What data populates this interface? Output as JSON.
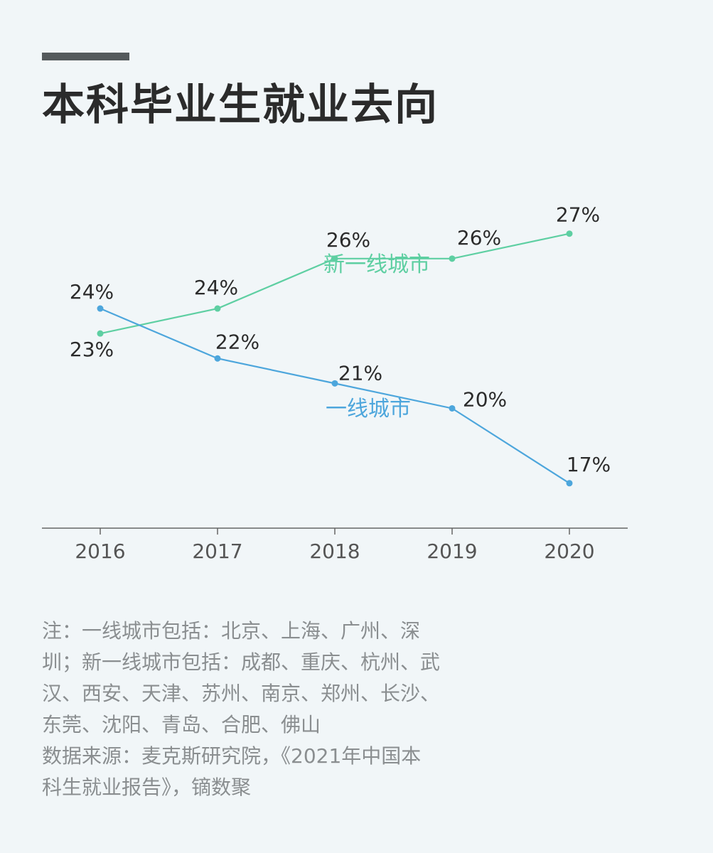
{
  "title": "本科毕业生就业去向",
  "colors": {
    "new_tier1": "#5ecfa2",
    "tier1": "#4da6dc",
    "axis": "#666666",
    "text": "#2b2b2b",
    "note": "#8a8e90"
  },
  "chart_data": {
    "type": "line",
    "title": "本科毕业生就业去向",
    "x": [
      "2016",
      "2017",
      "2018",
      "2019",
      "2020"
    ],
    "series": [
      {
        "name": "新一线城市",
        "values": [
          23,
          24,
          26,
          26,
          27
        ],
        "labels": [
          "23%",
          "24%",
          "26%",
          "26%",
          "27%"
        ]
      },
      {
        "name": "一线城市",
        "values": [
          24,
          22,
          21,
          20,
          17
        ],
        "labels": [
          "24%",
          "22%",
          "21%",
          "20%",
          "17%"
        ]
      }
    ],
    "ylim": [
      15.2,
      28.9
    ],
    "grid": false,
    "legend": "inline labels"
  },
  "note": {
    "lines": [
      "注：一线城市包括：北京、上海、广州、深",
      "圳；新一线城市包括：成都、重庆、杭州、武",
      "汉、西安、天津、苏州、南京、郑州、长沙、",
      "东莞、沈阳、青岛、合肥、佛山",
      "数据来源：麦克斯研究院，《2021年中国本",
      "科生就业报告》，镝数聚"
    ]
  }
}
